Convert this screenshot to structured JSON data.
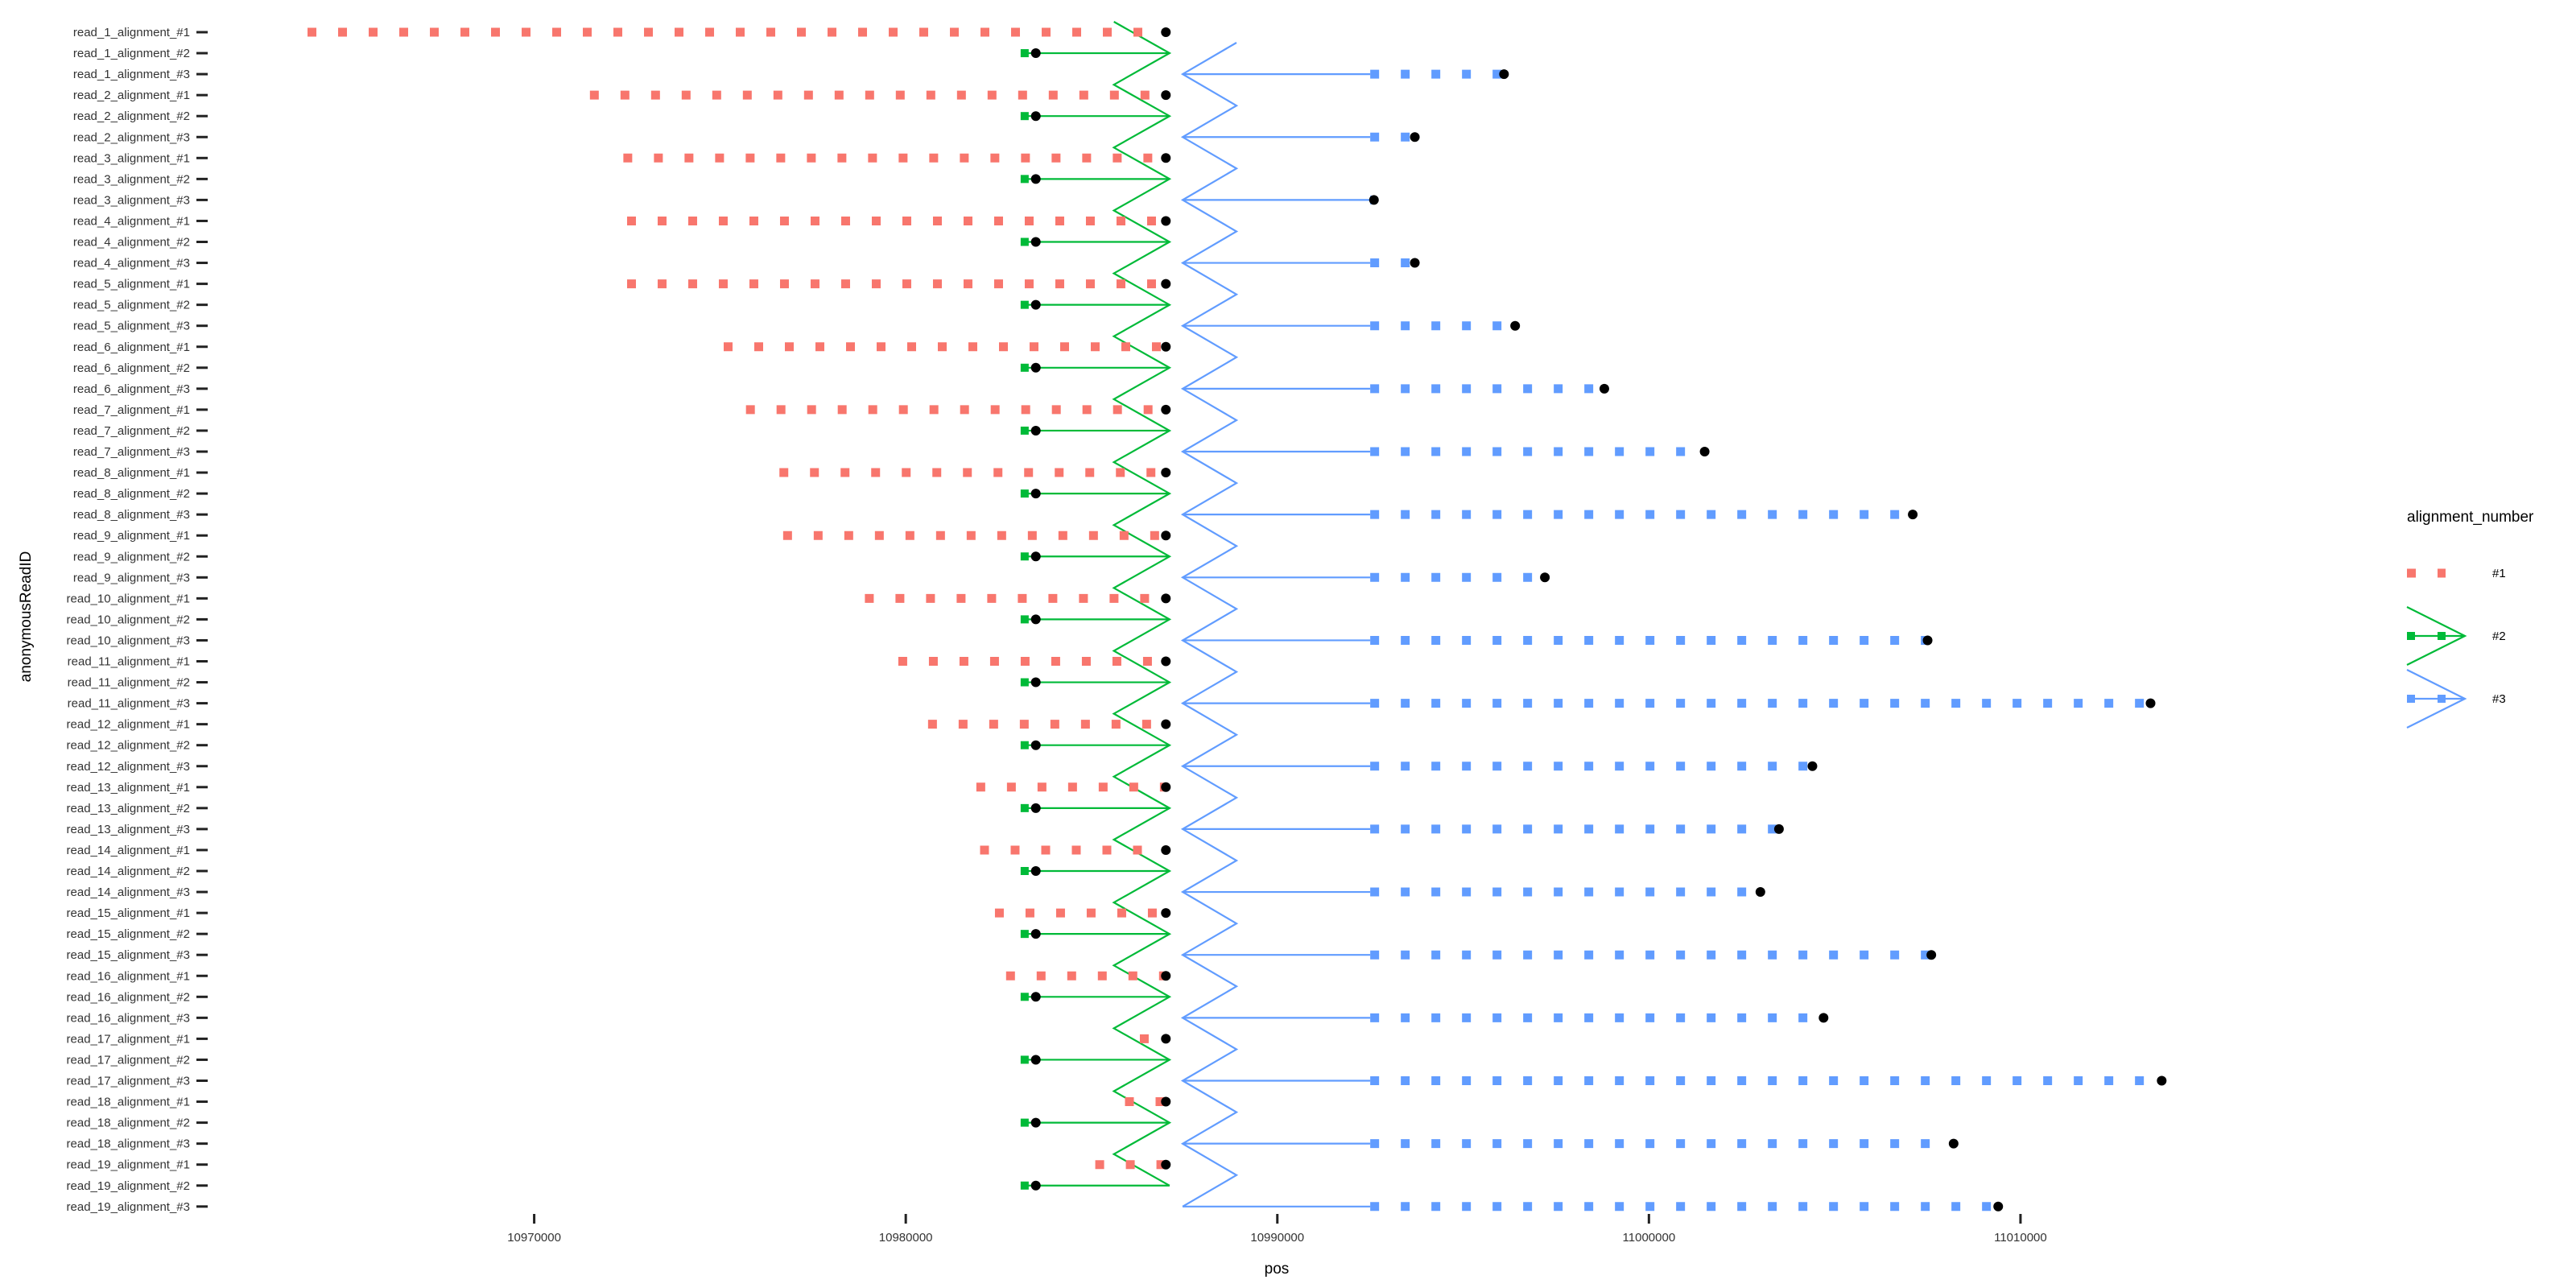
{
  "chart_data": {
    "type": "line",
    "xlabel": "pos",
    "ylabel": "anonymousReadID",
    "x_ticks": [
      10970000,
      10980000,
      10990000,
      11000000,
      11010000
    ],
    "x_tick_labels": [
      "10970000",
      "10980000",
      "10990000",
      "11000000",
      "11010000"
    ],
    "xlim": [
      10961300,
      11023000
    ],
    "grid": false,
    "legend": {
      "title": "alignment_number",
      "placement": "right",
      "entries": [
        "#1",
        "#2",
        "#3"
      ]
    },
    "colors": {
      "#1": "#F8766D",
      "#2": "#00BA38",
      "#3": "#619CFF",
      "endpoint": "#000000"
    },
    "connector": {
      "green_start_x": 10985600,
      "green_apex_x": 10987100,
      "blue_start_x": 10988900,
      "blue_apex_x": 10987450
    },
    "categories": [
      "read_1_alignment_#1",
      "read_1_alignment_#2",
      "read_1_alignment_#3",
      "read_2_alignment_#1",
      "read_2_alignment_#2",
      "read_2_alignment_#3",
      "read_3_alignment_#1",
      "read_3_alignment_#2",
      "read_3_alignment_#3",
      "read_4_alignment_#1",
      "read_4_alignment_#2",
      "read_4_alignment_#3",
      "read_5_alignment_#1",
      "read_5_alignment_#2",
      "read_5_alignment_#3",
      "read_6_alignment_#1",
      "read_6_alignment_#2",
      "read_6_alignment_#3",
      "read_7_alignment_#1",
      "read_7_alignment_#2",
      "read_7_alignment_#3",
      "read_8_alignment_#1",
      "read_8_alignment_#2",
      "read_8_alignment_#3",
      "read_9_alignment_#1",
      "read_9_alignment_#2",
      "read_9_alignment_#3",
      "read_10_alignment_#1",
      "read_10_alignment_#2",
      "read_10_alignment_#3",
      "read_11_alignment_#1",
      "read_11_alignment_#2",
      "read_11_alignment_#3",
      "read_12_alignment_#1",
      "read_12_alignment_#2",
      "read_12_alignment_#3",
      "read_13_alignment_#1",
      "read_13_alignment_#2",
      "read_13_alignment_#3",
      "read_14_alignment_#1",
      "read_14_alignment_#2",
      "read_14_alignment_#3",
      "read_15_alignment_#1",
      "read_15_alignment_#2",
      "read_15_alignment_#3",
      "read_16_alignment_#1",
      "read_16_alignment_#2",
      "read_16_alignment_#3",
      "read_17_alignment_#1",
      "read_17_alignment_#2",
      "read_17_alignment_#3",
      "read_18_alignment_#1",
      "read_18_alignment_#2",
      "read_18_alignment_#3",
      "read_19_alignment_#1",
      "read_19_alignment_#2",
      "read_19_alignment_#3"
    ],
    "series": [
      {
        "name": "#1",
        "segments": [
          {
            "read": 1,
            "start": 10963900,
            "end": 10987000
          },
          {
            "read": 2,
            "start": 10971500,
            "end": 10987000
          },
          {
            "read": 3,
            "start": 10972400,
            "end": 10987000
          },
          {
            "read": 4,
            "start": 10972500,
            "end": 10987000
          },
          {
            "read": 5,
            "start": 10972500,
            "end": 10987000
          },
          {
            "read": 6,
            "start": 10975100,
            "end": 10987000
          },
          {
            "read": 7,
            "start": 10975700,
            "end": 10987000
          },
          {
            "read": 8,
            "start": 10976600,
            "end": 10987000
          },
          {
            "read": 9,
            "start": 10976700,
            "end": 10987000
          },
          {
            "read": 10,
            "start": 10978900,
            "end": 10987000
          },
          {
            "read": 11,
            "start": 10979800,
            "end": 10987000
          },
          {
            "read": 12,
            "start": 10980600,
            "end": 10987000
          },
          {
            "read": 13,
            "start": 10981900,
            "end": 10987000
          },
          {
            "read": 14,
            "start": 10982000,
            "end": 10987000
          },
          {
            "read": 15,
            "start": 10982400,
            "end": 10987000
          },
          {
            "read": 16,
            "start": 10982700,
            "end": 10987000
          },
          {
            "read": 17,
            "start": 10986300,
            "end": 10987000
          },
          {
            "read": 18,
            "start": 10985900,
            "end": 10987000
          },
          {
            "read": 19,
            "start": 10985100,
            "end": 10987000
          }
        ]
      },
      {
        "name": "#2",
        "segments": [
          {
            "read": 1,
            "start": 10983200,
            "end": 10983500
          },
          {
            "read": 2,
            "start": 10983200,
            "end": 10983500
          },
          {
            "read": 3,
            "start": 10983200,
            "end": 10983500
          },
          {
            "read": 4,
            "start": 10983200,
            "end": 10983500
          },
          {
            "read": 5,
            "start": 10983200,
            "end": 10983500
          },
          {
            "read": 6,
            "start": 10983200,
            "end": 10983500
          },
          {
            "read": 7,
            "start": 10983200,
            "end": 10983500
          },
          {
            "read": 8,
            "start": 10983200,
            "end": 10983500
          },
          {
            "read": 9,
            "start": 10983200,
            "end": 10983500
          },
          {
            "read": 10,
            "start": 10983200,
            "end": 10983500
          },
          {
            "read": 11,
            "start": 10983200,
            "end": 10983500
          },
          {
            "read": 12,
            "start": 10983200,
            "end": 10983500
          },
          {
            "read": 13,
            "start": 10983200,
            "end": 10983500
          },
          {
            "read": 14,
            "start": 10983200,
            "end": 10983500
          },
          {
            "read": 15,
            "start": 10983200,
            "end": 10983500
          },
          {
            "read": 16,
            "start": 10983200,
            "end": 10983500
          },
          {
            "read": 17,
            "start": 10983200,
            "end": 10983500
          },
          {
            "read": 18,
            "start": 10983200,
            "end": 10983500
          },
          {
            "read": 19,
            "start": 10983200,
            "end": 10983500
          }
        ]
      },
      {
        "name": "#3",
        "segments": [
          {
            "read": 1,
            "start": 10992500,
            "end": 10996100
          },
          {
            "read": 2,
            "start": 10992500,
            "end": 10993700
          },
          {
            "read": 3,
            "start": 10992500,
            "end": 10992600
          },
          {
            "read": 4,
            "start": 10992500,
            "end": 10993700
          },
          {
            "read": 5,
            "start": 10992500,
            "end": 10996400
          },
          {
            "read": 6,
            "start": 10992500,
            "end": 10998800
          },
          {
            "read": 7,
            "start": 10992500,
            "end": 11001500
          },
          {
            "read": 8,
            "start": 10992500,
            "end": 11007100
          },
          {
            "read": 9,
            "start": 10992500,
            "end": 10997200
          },
          {
            "read": 10,
            "start": 10992500,
            "end": 11007500
          },
          {
            "read": 11,
            "start": 10992500,
            "end": 11013500
          },
          {
            "read": 12,
            "start": 10992500,
            "end": 11004400
          },
          {
            "read": 13,
            "start": 10992500,
            "end": 11003500
          },
          {
            "read": 14,
            "start": 10992500,
            "end": 11003000
          },
          {
            "read": 15,
            "start": 10992500,
            "end": 11007600
          },
          {
            "read": 16,
            "start": 10992500,
            "end": 11004700
          },
          {
            "read": 17,
            "start": 10992500,
            "end": 11013800
          },
          {
            "read": 18,
            "start": 10992500,
            "end": 11008200
          },
          {
            "read": 19,
            "start": 10992500,
            "end": 11009400
          }
        ]
      }
    ]
  }
}
